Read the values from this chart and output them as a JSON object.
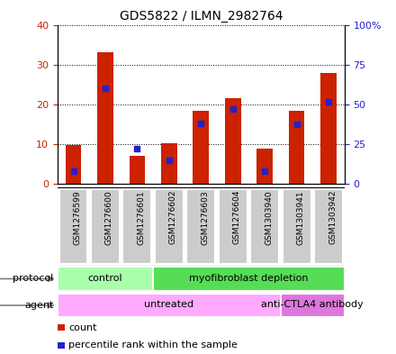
{
  "title": "GDS5822 / ILMN_2982764",
  "samples": [
    "GSM1276599",
    "GSM1276600",
    "GSM1276601",
    "GSM1276602",
    "GSM1276603",
    "GSM1276604",
    "GSM1303940",
    "GSM1303941",
    "GSM1303942"
  ],
  "counts": [
    9.8,
    33.0,
    7.2,
    10.2,
    18.5,
    21.5,
    9.0,
    18.5,
    28.0
  ],
  "percentiles": [
    8.0,
    60.0,
    22.5,
    15.0,
    38.0,
    47.0,
    8.0,
    37.5,
    51.5
  ],
  "ylim_left": [
    0,
    40
  ],
  "ylim_right": [
    0,
    100
  ],
  "yticks_left": [
    0,
    10,
    20,
    30,
    40
  ],
  "ytick_labels_right": [
    "0",
    "25",
    "50",
    "75",
    "100%"
  ],
  "bar_color": "#cc2200",
  "dot_color": "#2222cc",
  "protocol_groups": [
    {
      "label": "control",
      "start": 0,
      "end": 3,
      "color": "#aaffaa"
    },
    {
      "label": "myofibroblast depletion",
      "start": 3,
      "end": 9,
      "color": "#55dd55"
    }
  ],
  "agent_groups": [
    {
      "label": "untreated",
      "start": 0,
      "end": 7,
      "color": "#ffaaff"
    },
    {
      "label": "anti-CTLA4 antibody",
      "start": 7,
      "end": 9,
      "color": "#dd77dd"
    }
  ],
  "legend_count_label": "count",
  "legend_pct_label": "percentile rank within the sample",
  "left_ytick_color": "#cc2200",
  "right_ytick_color": "#2222cc",
  "sample_box_color": "#cccccc",
  "plot_bg": "#ffffff"
}
